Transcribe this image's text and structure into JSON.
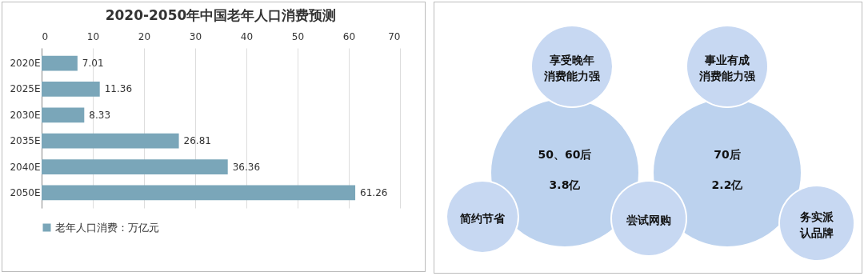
{
  "chart_data": [
    {
      "type": "bar",
      "title": "2020-2050年中国老年人口消费预测",
      "orientation": "horizontal",
      "categories": [
        "2020E",
        "2025E",
        "2030E",
        "2035E",
        "2040E",
        "2050E"
      ],
      "series": [
        {
          "name": "老年人口消费：万亿元",
          "color": "#7aa6b9",
          "values": [
            7.01,
            11.36,
            8.33,
            26.81,
            36.36,
            61.26
          ]
        }
      ],
      "xlim": [
        0,
        70
      ],
      "xticks": [
        0,
        10,
        20,
        30,
        40,
        50,
        60,
        70
      ],
      "grid": "x",
      "legend": "bottom",
      "data_labels": true
    },
    {
      "type": "other",
      "annotations": [
        "享受晚年",
        "消费能力强",
        "事业有成",
        "消费能力强",
        "50、60后",
        "3.8亿",
        "70后",
        "2.2亿",
        "简约节省",
        "尝试网购",
        "务实派",
        "认品牌"
      ]
    }
  ]
}
